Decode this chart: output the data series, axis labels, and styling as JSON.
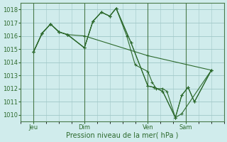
{
  "bg_color": "#d0ecec",
  "grid_color": "#a0c8c8",
  "line_color": "#2d6a2d",
  "xlabel": "Pression niveau de la mer( hPa )",
  "ylim": [
    1009.5,
    1018.5
  ],
  "xlim": [
    0,
    96
  ],
  "yticks": [
    1010,
    1011,
    1012,
    1013,
    1014,
    1015,
    1016,
    1017,
    1018
  ],
  "xtick_labels": [
    "Jeu",
    "Dim",
    "Ven",
    "Sam"
  ],
  "xtick_positions": [
    6,
    30,
    60,
    78
  ],
  "vlines": [
    6,
    30,
    60,
    78
  ],
  "series": [
    [
      6,
      1014.8,
      10,
      1016.2,
      14,
      1016.9,
      18,
      1016.3,
      22,
      1016.1,
      30,
      1016.0,
      60,
      1014.5,
      90,
      1013.4
    ],
    [
      6,
      1014.8,
      10,
      1016.2,
      14,
      1016.9,
      18,
      1016.3,
      22,
      1016.1,
      30,
      1015.1,
      34,
      1017.1,
      38,
      1017.8,
      42,
      1017.5,
      45,
      1018.1,
      50,
      1016.0,
      54,
      1013.8,
      60,
      1013.3,
      62,
      1012.5,
      64,
      1012.0,
      67,
      1012.0,
      69,
      1011.8,
      73,
      1009.8,
      76,
      1010.1,
      90,
      1013.4
    ],
    [
      6,
      1014.8,
      10,
      1016.2,
      14,
      1016.9,
      18,
      1016.3,
      22,
      1016.1,
      30,
      1015.1,
      34,
      1017.1,
      38,
      1017.8,
      42,
      1017.5,
      45,
      1018.1,
      52,
      1015.5,
      60,
      1012.2,
      63,
      1012.1,
      67,
      1011.8,
      73,
      1009.8,
      76,
      1011.5,
      79,
      1012.1,
      82,
      1011.0,
      90,
      1013.4
    ],
    [
      6,
      1014.8,
      10,
      1016.2,
      14,
      1016.9,
      18,
      1016.3,
      22,
      1016.1,
      30,
      1015.1,
      34,
      1017.1,
      38,
      1017.8,
      42,
      1017.5,
      45,
      1018.1,
      52,
      1015.5,
      60,
      1012.2,
      63,
      1012.1,
      67,
      1011.8,
      73,
      1009.8,
      76,
      1011.5,
      79,
      1012.1,
      82,
      1011.0,
      90,
      1013.4
    ]
  ]
}
